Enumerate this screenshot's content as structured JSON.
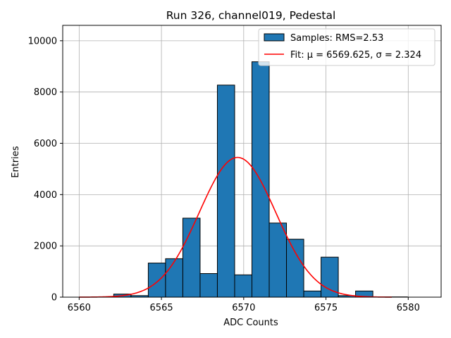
{
  "chart_data": {
    "type": "bar",
    "title": "Run 326, channel019, Pedestal",
    "xlabel": "ADC Counts",
    "ylabel": "Entries",
    "xlim": [
      6559,
      6582
    ],
    "ylim": [
      0,
      10600
    ],
    "grid": true,
    "bin_width": 1.05,
    "x_ticks": [
      6560,
      6565,
      6570,
      6575,
      6580
    ],
    "x_tick_labels": [
      "6560",
      "6565",
      "6570",
      "6575",
      "6580"
    ],
    "y_ticks": [
      0,
      2000,
      4000,
      6000,
      8000,
      10000
    ],
    "y_tick_labels": [
      "0",
      "2000",
      "4000",
      "6000",
      "8000",
      "10000"
    ],
    "bins": [
      {
        "start": 6562.1,
        "count": 120
      },
      {
        "start": 6563.15,
        "count": 60
      },
      {
        "start": 6564.2,
        "count": 1330
      },
      {
        "start": 6565.25,
        "count": 1500
      },
      {
        "start": 6566.3,
        "count": 3080
      },
      {
        "start": 6567.35,
        "count": 920
      },
      {
        "start": 6568.4,
        "count": 8270
      },
      {
        "start": 6569.45,
        "count": 870
      },
      {
        "start": 6570.5,
        "count": 9180
      },
      {
        "start": 6571.55,
        "count": 2890
      },
      {
        "start": 6572.6,
        "count": 2260
      },
      {
        "start": 6573.65,
        "count": 240
      },
      {
        "start": 6574.7,
        "count": 1560
      },
      {
        "start": 6575.75,
        "count": 60
      },
      {
        "start": 6576.8,
        "count": 240
      },
      {
        "start": 6577.85,
        "count": 10
      },
      {
        "start": 6578.9,
        "count": 10
      }
    ],
    "fit": {
      "mu": 6569.625,
      "sigma": 2.324,
      "amplitude": 5450,
      "x_range": [
        6560,
        6579
      ],
      "color": "#ff0000"
    },
    "bar_color": "#1f77b4",
    "bar_edge_color": "#000000",
    "legend": {
      "position": "top-right",
      "entries": [
        {
          "label": "Samples: RMS=2.53",
          "kind": "patch"
        },
        {
          "label": "Fit: μ = 6569.625, σ = 2.324",
          "kind": "line"
        }
      ]
    }
  }
}
